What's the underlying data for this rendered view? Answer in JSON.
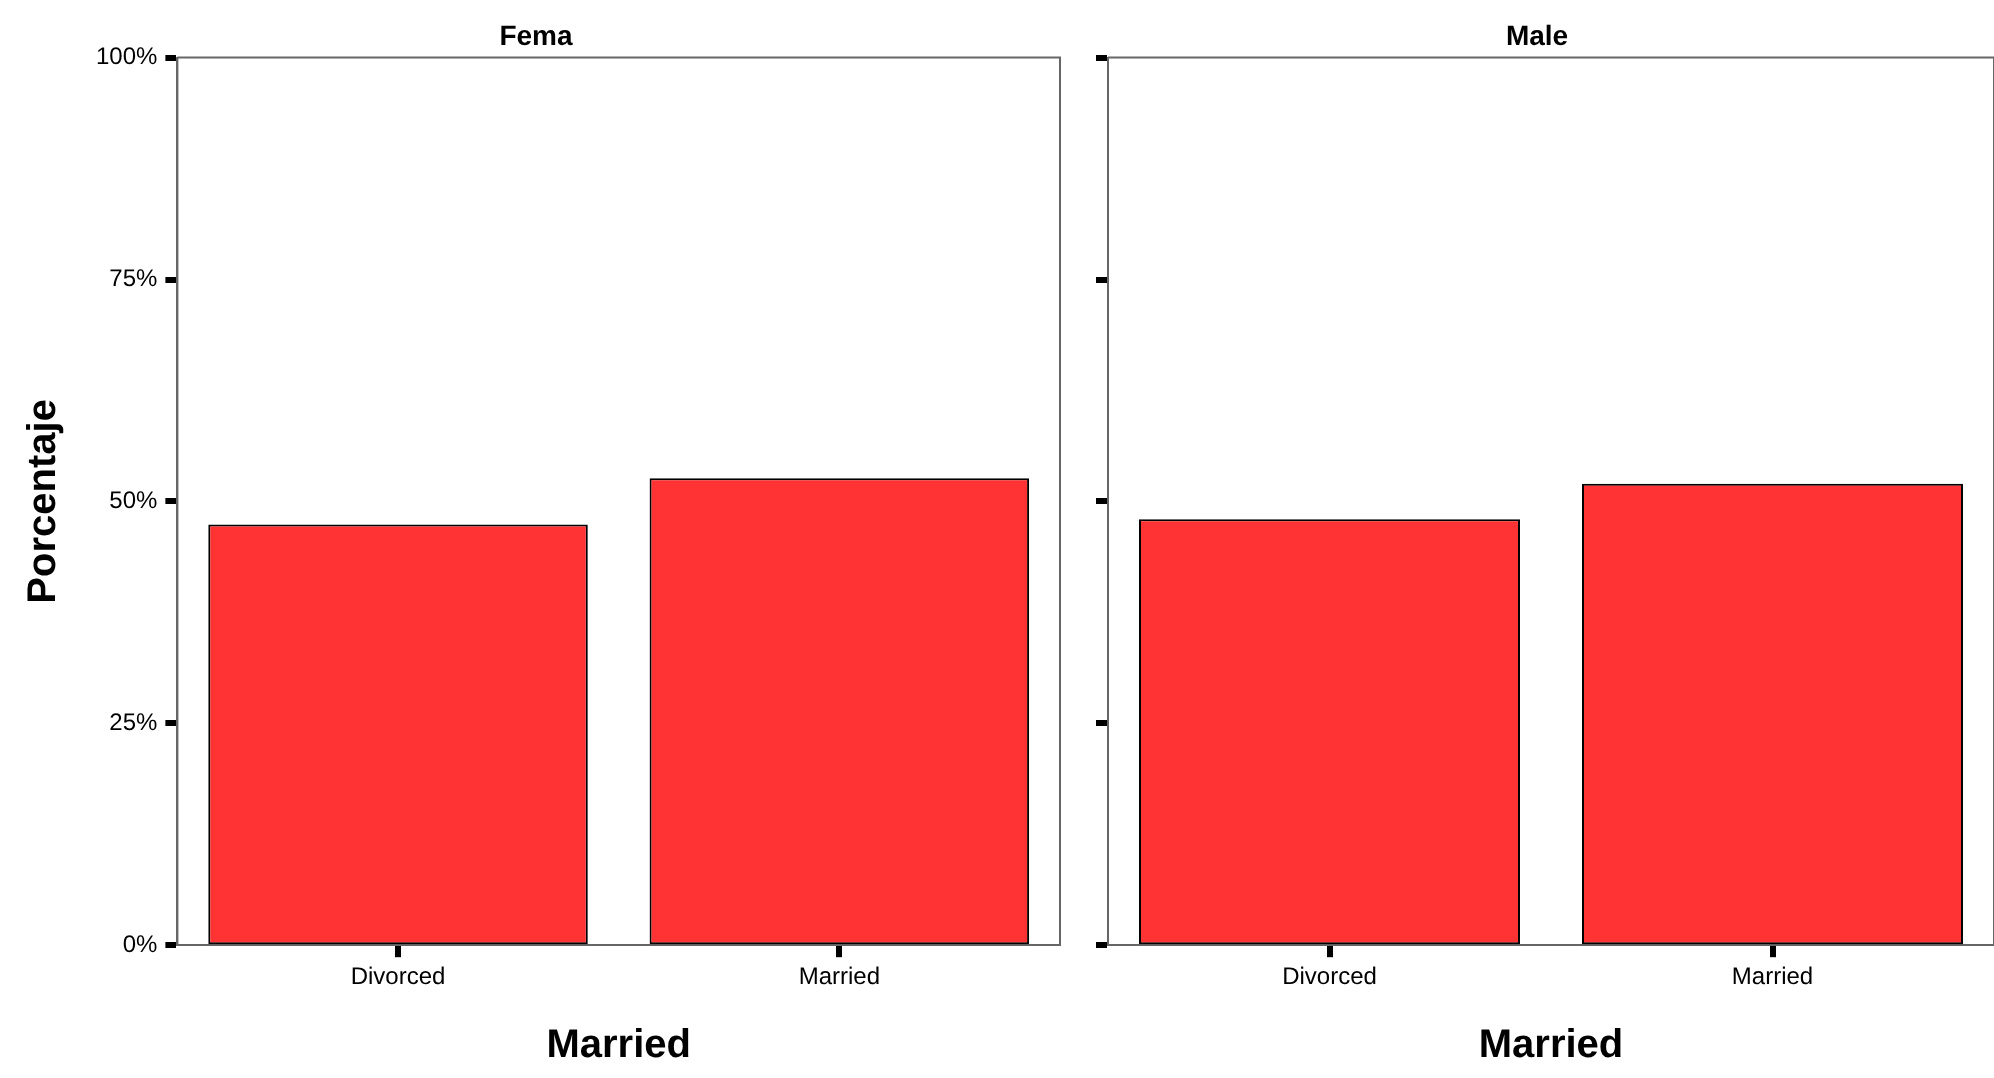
{
  "chart_data": [
    {
      "type": "bar",
      "title": "Fema",
      "xlabel": "Married",
      "ylabel": "Porcentaje",
      "categories": [
        "Divorced",
        "Married"
      ],
      "values": [
        47.4,
        52.6
      ],
      "color": "#ff3333",
      "ylim": [
        0,
        100
      ],
      "yticks": [
        {
          "value": 0,
          "label": "0%"
        },
        {
          "value": 25,
          "label": "25%"
        },
        {
          "value": 50,
          "label": "50%"
        },
        {
          "value": 75,
          "label": "75%"
        },
        {
          "value": 100,
          "label": "100%"
        }
      ],
      "grid": false,
      "legend": false
    },
    {
      "type": "bar",
      "title": "Male",
      "xlabel": "Married",
      "categories": [
        "Divorced",
        "Married"
      ],
      "values": [
        48.0,
        52.0
      ],
      "color": "#ff3333",
      "ylim": [
        0,
        100
      ],
      "yticks": [
        {
          "value": 0,
          "label": null
        },
        {
          "value": 25,
          "label": null
        },
        {
          "value": 50,
          "label": null
        },
        {
          "value": 75,
          "label": null
        },
        {
          "value": 100,
          "label": null
        }
      ],
      "grid": false,
      "legend": false,
      "tick_labels": "x"
    }
  ]
}
